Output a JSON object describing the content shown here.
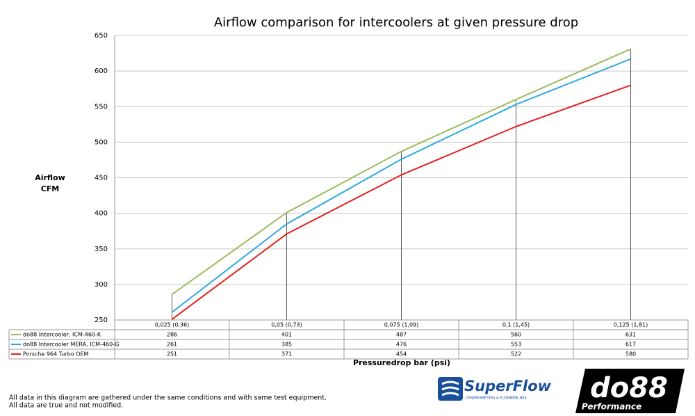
{
  "chart_data": {
    "type": "line",
    "title": "Airflow comparison for intercoolers at given pressure drop",
    "y_label": [
      "Airflow",
      "CFM"
    ],
    "x_label": "Pressuredrop bar (psi)",
    "categories": [
      "0,025 (0,36)",
      "0,05 (0,73)",
      "0,075 (1,09)",
      "0,1 (1,45)",
      "0,125 (1,81)"
    ],
    "series": [
      {
        "name": "do88 Intercooler, ICM-460-K",
        "color": "#9bbb59",
        "values": [
          286,
          401,
          487,
          560,
          631
        ]
      },
      {
        "name": "do88 Intercooler MERA, ICM-460-G",
        "color": "#2ea9de",
        "values": [
          261,
          385,
          476,
          553,
          617
        ]
      },
      {
        "name": "Porsche 964 Turbo OEM",
        "color": "#e3201b",
        "values": [
          251,
          371,
          454,
          522,
          580
        ]
      }
    ],
    "ylim": [
      250,
      650
    ],
    "yticks": [
      250,
      300,
      350,
      400,
      450,
      500,
      550,
      600,
      650
    ],
    "grid": true,
    "footnotes": [
      "All data in this diagram are gathered under the same conditions and with same test equipment.",
      "All data are true and not modified."
    ],
    "logos": {
      "superflow": "SuperFlow",
      "superflow_tagline": "DYNAMOMETERS & FLOWBENCHES",
      "do88": "do88",
      "do88_tagline": "Performance"
    }
  }
}
